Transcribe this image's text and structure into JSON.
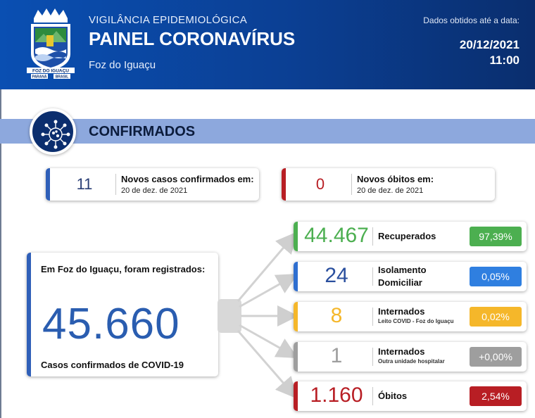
{
  "header": {
    "subtitle": "VIGILÂNCIA EPIDEMIOLÓGICA",
    "title": "PAINEL CORONAVÍRUS",
    "city": "Foz do Iguaçu",
    "date_label": "Dados obtidos até a data:",
    "date": "20/12/2021",
    "time": "11:00",
    "logo_text_top": "FOZ DO IGUAÇU",
    "logo_text_left": "PARANÁ",
    "logo_text_right": "BRASIL"
  },
  "section": {
    "title": "CONFIRMADOS",
    "icon": "virus-icon"
  },
  "summary_cards": [
    {
      "value": "11",
      "label": "Novos casos confirmados em:",
      "date": "20 de dez. de 2021",
      "color": "#2f5fb8"
    },
    {
      "value": "0",
      "label": "Novos óbitos em:",
      "date": "20 de dez. de 2021",
      "color": "#b81e24"
    }
  ],
  "total": {
    "intro": "Em Foz do Iguaçu, foram registrados:",
    "value": "45.660",
    "caption": "Casos confirmados de COVID-19",
    "color": "#2f5fb8"
  },
  "breakdown": [
    {
      "value": "44.467",
      "label": "Recuperados",
      "sub": "",
      "pct": "97,39%",
      "color": "#4caf50",
      "num_color": "#4caf50"
    },
    {
      "value": "24",
      "label": "Isolamento Domiciliar",
      "sub": "",
      "pct": "0,05%",
      "color": "#2f6fd0",
      "num_color": "#2a4f9e"
    },
    {
      "value": "8",
      "label": "Internados",
      "sub": "Leito COVID - Foz do Iguaçu",
      "pct": "0,02%",
      "color": "#f5b72a",
      "num_color": "#f5b72a"
    },
    {
      "value": "1",
      "label": "Internados",
      "sub": "Outra unidade hospitalar",
      "pct": "+0,00%",
      "color": "#9e9e9e",
      "num_color": "#9e9e9e"
    },
    {
      "value": "1.160",
      "label": "Óbitos",
      "sub": "",
      "pct": "2,54%",
      "color": "#b81e24",
      "num_color": "#b81e24"
    }
  ]
}
